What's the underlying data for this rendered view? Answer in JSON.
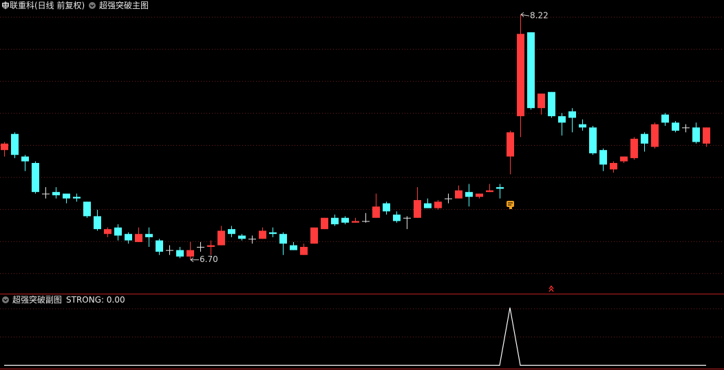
{
  "chart_data": [
    {
      "type": "candlestick",
      "title": "中联重科(日线 前复权)",
      "subtitle": "超强突破主图",
      "up_color": "#ff3b3b",
      "down_color": "#54ffff",
      "flat_color": "#e8e8e8",
      "ylim": [
        6.49,
        8.31
      ],
      "grid": true,
      "open": [
        7.38,
        7.48,
        7.34,
        7.3,
        7.11,
        7.12,
        7.11,
        7.09,
        7.06,
        6.97,
        6.86,
        6.9,
        6.86,
        6.81,
        6.86,
        6.82,
        6.76,
        6.76,
        6.72,
        6.78,
        6.78,
        6.79,
        6.89,
        6.85,
        6.83,
        6.83,
        6.87,
        6.86,
        6.79,
        6.73,
        6.8,
        6.89,
        6.96,
        6.96,
        6.93,
        6.94,
        6.96,
        7.05,
        6.98,
        6.96,
        6.96,
        7.05,
        7.02,
        7.08,
        7.08,
        7.12,
        7.09,
        7.12,
        7.15,
        7.34,
        7.59,
        8.11,
        7.64,
        7.74,
        7.59,
        7.62,
        7.54,
        7.52,
        7.38,
        7.26,
        7.31,
        7.33,
        7.48,
        7.4,
        7.6,
        7.55,
        7.52,
        7.52,
        7.42
      ],
      "high": [
        7.43,
        7.49,
        7.35,
        7.31,
        7.15,
        7.15,
        7.11,
        7.11,
        7.06,
        7.01,
        6.9,
        6.92,
        6.87,
        6.9,
        6.9,
        6.83,
        6.79,
        6.78,
        6.81,
        6.81,
        6.82,
        6.91,
        6.91,
        6.86,
        6.85,
        6.9,
        6.9,
        6.87,
        6.81,
        6.8,
        6.9,
        6.96,
        6.98,
        6.97,
        6.96,
        6.99,
        7.11,
        7.06,
        7.0,
        6.97,
        7.15,
        7.08,
        7.07,
        7.11,
        7.16,
        7.17,
        7.11,
        7.17,
        7.17,
        7.5,
        8.22,
        8.11,
        7.73,
        7.74,
        7.61,
        7.64,
        7.57,
        7.53,
        7.39,
        7.31,
        7.34,
        7.46,
        7.49,
        7.55,
        7.61,
        7.56,
        7.54,
        7.55,
        7.52
      ],
      "low": [
        7.34,
        7.33,
        7.25,
        7.11,
        7.08,
        7.08,
        7.05,
        7.06,
        6.96,
        6.88,
        6.84,
        6.82,
        6.8,
        6.81,
        6.78,
        6.73,
        6.73,
        6.71,
        6.7,
        6.75,
        6.73,
        6.79,
        6.84,
        6.82,
        6.8,
        6.83,
        6.84,
        6.73,
        6.76,
        6.73,
        6.8,
        6.89,
        6.91,
        6.92,
        6.93,
        6.93,
        6.96,
        6.98,
        6.93,
        6.89,
        6.96,
        7.02,
        7.01,
        7.05,
        7.08,
        7.03,
        7.08,
        7.12,
        7.08,
        7.23,
        7.46,
        7.63,
        7.6,
        7.58,
        7.47,
        7.49,
        7.5,
        7.35,
        7.25,
        7.24,
        7.3,
        7.32,
        7.37,
        7.39,
        7.53,
        7.49,
        7.49,
        7.42,
        7.4
      ],
      "close": [
        7.42,
        7.35,
        7.31,
        7.12,
        7.11,
        7.1,
        7.08,
        7.08,
        6.97,
        6.89,
        6.89,
        6.85,
        6.82,
        6.86,
        6.84,
        6.75,
        6.76,
        6.72,
        6.76,
        6.78,
        6.79,
        6.88,
        6.86,
        6.83,
        6.83,
        6.88,
        6.86,
        6.8,
        6.76,
        6.78,
        6.9,
        6.96,
        6.92,
        6.93,
        6.94,
        6.94,
        7.03,
        7.0,
        6.94,
        6.96,
        7.07,
        7.02,
        7.06,
        7.08,
        7.13,
        7.09,
        7.11,
        7.13,
        7.14,
        7.49,
        8.1,
        7.64,
        7.73,
        7.59,
        7.55,
        7.58,
        7.52,
        7.36,
        7.29,
        7.3,
        7.34,
        7.45,
        7.42,
        7.54,
        7.55,
        7.5,
        7.52,
        7.43,
        7.52
      ],
      "annotations": [
        {
          "value": 8.22,
          "label": "8.22"
        },
        {
          "value": 6.7,
          "label": "6.70"
        }
      ]
    },
    {
      "type": "line",
      "title": "超强突破副图",
      "legend_text": "STRONG: 0.00",
      "color": "#ffffff",
      "ylim": [
        -0.08,
        1.23
      ],
      "grid": true,
      "values": [
        0,
        0,
        0,
        0,
        0,
        0,
        0,
        0,
        0,
        0,
        0,
        0,
        0,
        0,
        0,
        0,
        0,
        0,
        0,
        0,
        0,
        0,
        0,
        0,
        0,
        0,
        0,
        0,
        0,
        0,
        0,
        0,
        0,
        0,
        0,
        0,
        0,
        0,
        0,
        0,
        0,
        0,
        0,
        0,
        0,
        0,
        0,
        0,
        0,
        1,
        0,
        0,
        0,
        0,
        0,
        0,
        0,
        0,
        0,
        0,
        0,
        0,
        0,
        0,
        0,
        0,
        0,
        0,
        0
      ]
    }
  ]
}
